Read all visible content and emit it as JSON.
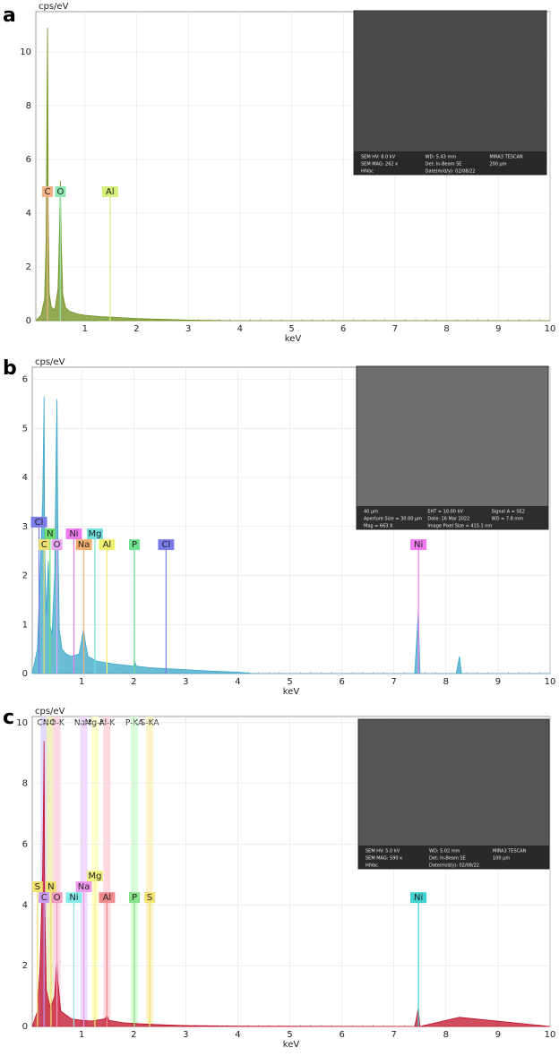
{
  "chart_data": [
    {
      "type": "line",
      "panel_label": "a",
      "y_label": "cps/eV",
      "x_label": "keV",
      "xlim": [
        0.05,
        10
      ],
      "ylim": [
        0,
        11.5
      ],
      "xticks": [
        1,
        2,
        3,
        4,
        5,
        6,
        7,
        8,
        9,
        10
      ],
      "yticks": [
        0,
        2,
        4,
        6,
        8,
        10
      ],
      "grid": true,
      "x": [
        0.05,
        0.15,
        0.22,
        0.25,
        0.27,
        0.277,
        0.29,
        0.31,
        0.35,
        0.42,
        0.48,
        0.51,
        0.525,
        0.54,
        0.57,
        0.62,
        0.7,
        0.85,
        1.0,
        1.3,
        1.6,
        2.0,
        2.5,
        3.0,
        4.0,
        10
      ],
      "values": [
        0,
        0.2,
        0.8,
        3,
        9,
        10.9,
        4,
        1,
        0.5,
        0.4,
        1.2,
        3.5,
        5.2,
        3,
        1,
        0.5,
        0.35,
        0.25,
        0.2,
        0.15,
        0.12,
        0.08,
        0.05,
        0.02,
        0,
        0
      ],
      "color": "#6f8f1c",
      "elements": [
        {
          "label": "C",
          "energy": 0.277,
          "height": 4.8,
          "color": "#f4b183"
        },
        {
          "label": "O",
          "energy": 0.525,
          "height": 4.8,
          "color": "#8ee6b0"
        },
        {
          "label": "Al",
          "energy": 1.486,
          "height": 4.8,
          "color": "#d4f07a"
        }
      ],
      "inset_text": [
        "SEM HV: 8.0 kV",
        "WD: 5.43 mm",
        "MIRA3 TESCAN",
        "SEM MAG: 262 x",
        "Det: In-Beam SE",
        "200 µm",
        "HiVac",
        "Date(m/d/y): 02/08/22"
      ]
    },
    {
      "type": "line",
      "panel_label": "b",
      "y_label": "cps/eV",
      "x_label": "keV",
      "xlim": [
        0.05,
        10
      ],
      "ylim": [
        0,
        6.25
      ],
      "xticks": [
        1,
        2,
        3,
        4,
        5,
        6,
        7,
        8,
        9,
        10
      ],
      "yticks": [
        0,
        1,
        2,
        3,
        4,
        5,
        6
      ],
      "grid": true,
      "x": [
        0.05,
        0.15,
        0.2,
        0.25,
        0.27,
        0.277,
        0.29,
        0.32,
        0.36,
        0.39,
        0.43,
        0.48,
        0.51,
        0.525,
        0.54,
        0.57,
        0.62,
        0.7,
        0.8,
        0.95,
        1.02,
        1.04,
        1.06,
        1.12,
        1.3,
        1.6,
        2.0,
        2.02,
        2.05,
        2.3,
        2.6,
        3,
        3.5,
        4,
        4.3,
        7.4,
        7.47,
        7.5,
        8.2,
        8.26,
        8.3,
        10
      ],
      "values": [
        0,
        0.5,
        2,
        3.5,
        5,
        5.65,
        2.5,
        1.2,
        2.3,
        1,
        0.8,
        2,
        4.5,
        5.6,
        3,
        0.9,
        0.5,
        0.4,
        0.35,
        0.4,
        0.8,
        0.9,
        0.7,
        0.35,
        0.25,
        0.2,
        0.15,
        0.25,
        0.15,
        0.12,
        0.1,
        0.08,
        0.05,
        0.03,
        0,
        0,
        1.3,
        0,
        0,
        0.35,
        0,
        0
      ],
      "color": "#3aa7c7",
      "elements": [
        {
          "label": "Cl",
          "energy": 0.18,
          "height": 3.09,
          "color": "#7b7bea"
        },
        {
          "label": "N",
          "energy": 0.392,
          "height": 2.85,
          "color": "#6fe06f"
        },
        {
          "label": "Ni",
          "energy": 0.85,
          "height": 2.85,
          "color": "#f07af0"
        },
        {
          "label": "Mg",
          "energy": 1.254,
          "height": 2.85,
          "color": "#72e0e0"
        },
        {
          "label": "C",
          "energy": 0.277,
          "height": 2.63,
          "color": "#f0e070"
        },
        {
          "label": "O",
          "energy": 0.525,
          "height": 2.63,
          "color": "#e6a6f0"
        },
        {
          "label": "Na",
          "energy": 1.041,
          "height": 2.63,
          "color": "#f4b070"
        },
        {
          "label": "Al",
          "energy": 1.486,
          "height": 2.63,
          "color": "#f0f070"
        },
        {
          "label": "P",
          "energy": 2.013,
          "height": 2.63,
          "color": "#70e090"
        },
        {
          "label": "Cl",
          "energy": 2.622,
          "height": 2.63,
          "color": "#7b7bea"
        },
        {
          "label": "Ni",
          "energy": 7.472,
          "height": 2.63,
          "color": "#f07af0"
        }
      ],
      "inset_text": [
        "40 µm",
        "EHT = 10.00 kV",
        "Signal A = SE2",
        "Aperture Size = 30.00 µm",
        "Date: 16 Mar 2022",
        "WD = 7.8 mm",
        "Mag = 663 X",
        "Image Pixel Size = 415.1 nm"
      ]
    },
    {
      "type": "line",
      "panel_label": "c",
      "y_label": "cps/eV",
      "x_label": "keV",
      "xlim": [
        0.05,
        10
      ],
      "ylim": [
        0,
        10.2
      ],
      "xticks": [
        1,
        2,
        3,
        4,
        5,
        6,
        7,
        8,
        9,
        10
      ],
      "yticks": [
        0,
        2,
        4,
        6,
        8,
        10
      ],
      "grid": true,
      "x": [
        0.05,
        0.15,
        0.2,
        0.25,
        0.27,
        0.277,
        0.29,
        0.32,
        0.4,
        0.48,
        0.51,
        0.525,
        0.54,
        0.6,
        0.8,
        1.0,
        1.2,
        1.45,
        1.486,
        1.52,
        1.8,
        2.2,
        2.6,
        3,
        4,
        7.4,
        7.47,
        7.5,
        8.26,
        10
      ],
      "values": [
        0,
        0.5,
        2,
        5,
        8,
        9.4,
        4,
        1.2,
        0.6,
        1,
        1.8,
        2.2,
        1.5,
        0.5,
        0.25,
        0.2,
        0.18,
        0.25,
        0.35,
        0.2,
        0.12,
        0.08,
        0.05,
        0.03,
        0.01,
        0,
        0.6,
        0,
        0.3,
        0
      ],
      "color": "#c0102a",
      "bands": [
        {
          "label": "C-K",
          "energy": 0.277,
          "color": "#e4d8ff"
        },
        {
          "label": "N-K",
          "energy": 0.392,
          "color": "#f0f0c0"
        },
        {
          "label": "O-K",
          "energy": 0.525,
          "color": "#ffd8e8"
        },
        {
          "label": "Na-K",
          "energy": 1.041,
          "color": "#f0d8ff"
        },
        {
          "label": "Mg-K",
          "energy": 1.254,
          "color": "#ffffd0"
        },
        {
          "label": "Al-K",
          "energy": 1.486,
          "color": "#ffd8e0"
        },
        {
          "label": "P-KA",
          "energy": 2.013,
          "color": "#d8ffd8"
        },
        {
          "label": "S-KA",
          "energy": 2.307,
          "color": "#fff4c8"
        }
      ],
      "elements": [
        {
          "label": "S",
          "energy": 0.15,
          "height": 4.6,
          "color": "#f0e070"
        },
        {
          "label": "N",
          "energy": 0.41,
          "height": 4.6,
          "color": "#f0e070"
        },
        {
          "label": "C",
          "energy": 0.277,
          "height": 4.24,
          "color": "#c89af0"
        },
        {
          "label": "O",
          "energy": 0.525,
          "height": 4.24,
          "color": "#f09ac0"
        },
        {
          "label": "Ni",
          "energy": 0.85,
          "height": 4.24,
          "color": "#86eaea"
        },
        {
          "label": "Na",
          "energy": 1.041,
          "height": 4.6,
          "color": "#f09af0"
        },
        {
          "label": "Mg",
          "energy": 1.254,
          "height": 4.95,
          "color": "#f0f080"
        },
        {
          "label": "Al",
          "energy": 1.486,
          "height": 4.24,
          "color": "#f08a8a"
        },
        {
          "label": "P",
          "energy": 2.013,
          "height": 4.24,
          "color": "#86e086"
        },
        {
          "label": "S",
          "energy": 2.307,
          "height": 4.24,
          "color": "#f0e070"
        },
        {
          "label": "Ni",
          "energy": 7.472,
          "height": 4.24,
          "color": "#40d0d0"
        }
      ],
      "inset_text": [
        "SEM HV: 5.0 kV",
        "WD: 5.02 mm",
        "MIRA3 TESCAN",
        "SEM MAG: 590 x",
        "Det: In-Beam SE",
        "100 µm",
        "HiVac",
        "Date(m/d/y): 02/08/22"
      ]
    }
  ]
}
